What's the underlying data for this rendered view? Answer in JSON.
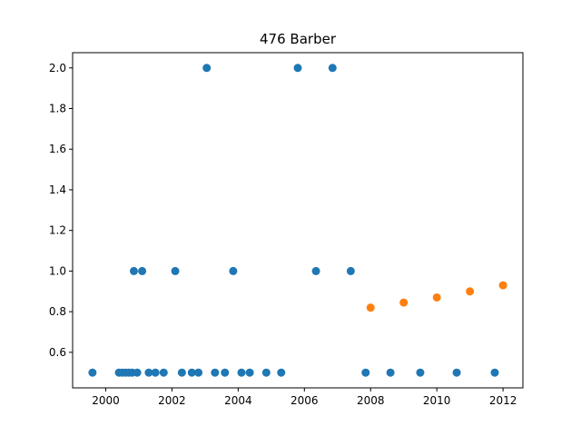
{
  "chart_data": {
    "type": "scatter",
    "title": "476 Barber",
    "xlabel": "",
    "ylabel": "",
    "xlim": [
      1999.0,
      2012.6
    ],
    "ylim": [
      0.425,
      2.075
    ],
    "grid": false,
    "xticks": [
      2000,
      2002,
      2004,
      2006,
      2008,
      2010,
      2012
    ],
    "xtick_labels": [
      "2000",
      "2002",
      "2004",
      "2006",
      "2008",
      "2010",
      "2012"
    ],
    "yticks": [
      0.6,
      0.8,
      1.0,
      1.2,
      1.4,
      1.6,
      1.8,
      2.0
    ],
    "ytick_labels": [
      "0.6",
      "0.8",
      "1.0",
      "1.2",
      "1.4",
      "1.6",
      "1.8",
      "2.0"
    ],
    "series": [
      {
        "color": "#1f77b4",
        "points": [
          {
            "x": 1999.6,
            "y": 0.5
          },
          {
            "x": 2000.4,
            "y": 0.5
          },
          {
            "x": 2000.5,
            "y": 0.5
          },
          {
            "x": 2000.6,
            "y": 0.5
          },
          {
            "x": 2000.7,
            "y": 0.5
          },
          {
            "x": 2000.8,
            "y": 0.5
          },
          {
            "x": 2000.85,
            "y": 1.0
          },
          {
            "x": 2000.95,
            "y": 0.5
          },
          {
            "x": 2001.1,
            "y": 1.0
          },
          {
            "x": 2001.3,
            "y": 0.5
          },
          {
            "x": 2001.5,
            "y": 0.5
          },
          {
            "x": 2001.75,
            "y": 0.5
          },
          {
            "x": 2002.1,
            "y": 1.0
          },
          {
            "x": 2002.3,
            "y": 0.5
          },
          {
            "x": 2002.6,
            "y": 0.5
          },
          {
            "x": 2002.8,
            "y": 0.5
          },
          {
            "x": 2003.05,
            "y": 2.0
          },
          {
            "x": 2003.3,
            "y": 0.5
          },
          {
            "x": 2003.6,
            "y": 0.5
          },
          {
            "x": 2003.85,
            "y": 1.0
          },
          {
            "x": 2004.1,
            "y": 0.5
          },
          {
            "x": 2004.35,
            "y": 0.5
          },
          {
            "x": 2004.85,
            "y": 0.5
          },
          {
            "x": 2005.3,
            "y": 0.5
          },
          {
            "x": 2005.8,
            "y": 2.0
          },
          {
            "x": 2006.35,
            "y": 1.0
          },
          {
            "x": 2006.85,
            "y": 2.0
          },
          {
            "x": 2007.4,
            "y": 1.0
          },
          {
            "x": 2007.85,
            "y": 0.5
          },
          {
            "x": 2008.6,
            "y": 0.5
          },
          {
            "x": 2009.5,
            "y": 0.5
          },
          {
            "x": 2010.6,
            "y": 0.5
          },
          {
            "x": 2011.75,
            "y": 0.5
          }
        ]
      },
      {
        "color": "#ff7f0e",
        "points": [
          {
            "x": 2008.0,
            "y": 0.82
          },
          {
            "x": 2009.0,
            "y": 0.845
          },
          {
            "x": 2010.0,
            "y": 0.87
          },
          {
            "x": 2011.0,
            "y": 0.9
          },
          {
            "x": 2012.0,
            "y": 0.93
          }
        ]
      }
    ]
  }
}
